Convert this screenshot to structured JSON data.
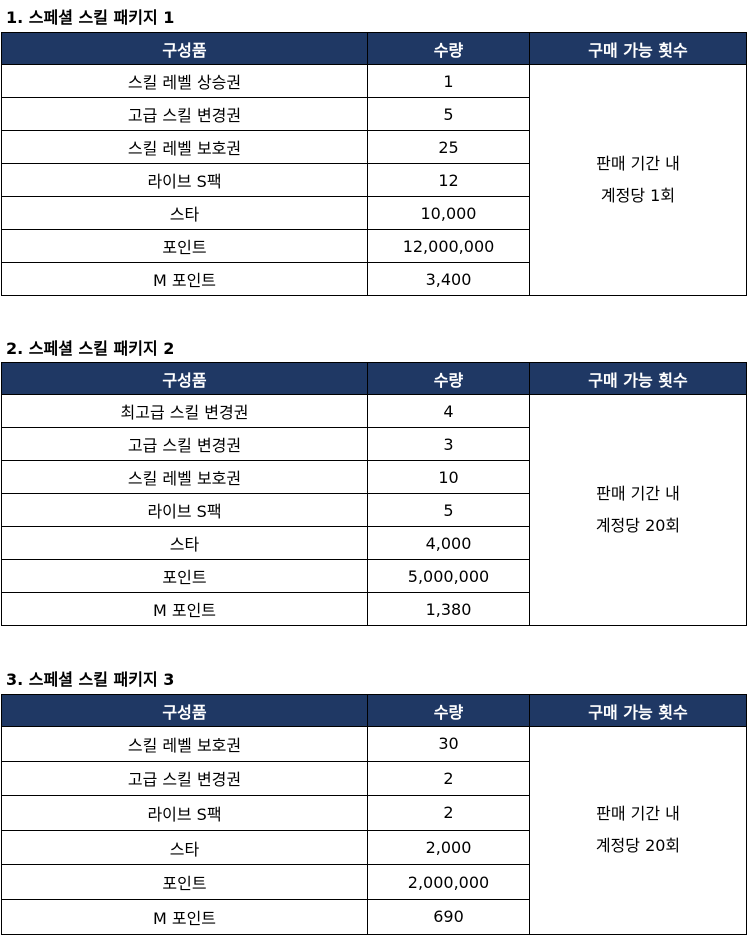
{
  "headers": {
    "item": "구성품",
    "qty": "수량",
    "limit": "구매 가능 횟수"
  },
  "sections": [
    {
      "title": "1. 스페셜 스킬 패키지 1",
      "rows": [
        {
          "item": "스킬 레벨 상승권",
          "qty": "1"
        },
        {
          "item": "고급 스킬 변경권",
          "qty": "5"
        },
        {
          "item": "스킬 레벨 보호권",
          "qty": "25"
        },
        {
          "item": "라이브 S팩",
          "qty": "12"
        },
        {
          "item": "스타",
          "qty": "10,000"
        },
        {
          "item": "포인트",
          "qty": "12,000,000"
        },
        {
          "item": "M 포인트",
          "qty": "3,400"
        }
      ],
      "limit_line1": "판매 기간 내",
      "limit_line2": "계정당 1회"
    },
    {
      "title": "2. 스페셜 스킬 패키지 2",
      "rows": [
        {
          "item": "최고급 스킬 변경권",
          "qty": "4"
        },
        {
          "item": "고급 스킬 변경권",
          "qty": "3"
        },
        {
          "item": "스킬 레벨 보호권",
          "qty": "10"
        },
        {
          "item": "라이브 S팩",
          "qty": "5"
        },
        {
          "item": "스타",
          "qty": "4,000"
        },
        {
          "item": "포인트",
          "qty": "5,000,000"
        },
        {
          "item": "M 포인트",
          "qty": "1,380"
        }
      ],
      "limit_line1": "판매 기간 내",
      "limit_line2": "계정당 20회"
    },
    {
      "title": "3. 스페셜 스킬 패키지 3",
      "rows": [
        {
          "item": "스킬 레벨 보호권",
          "qty": "30"
        },
        {
          "item": "고급 스킬 변경권",
          "qty": "2"
        },
        {
          "item": "라이브 S팩",
          "qty": "2"
        },
        {
          "item": "스타",
          "qty": "2,000"
        },
        {
          "item": "포인트",
          "qty": "2,000,000"
        },
        {
          "item": "M 포인트",
          "qty": "690"
        }
      ],
      "limit_line1": "판매 기간 내",
      "limit_line2": "계정당 20회"
    }
  ],
  "colors": {
    "header_bg": "#1f3864",
    "header_text": "#ffffff"
  }
}
